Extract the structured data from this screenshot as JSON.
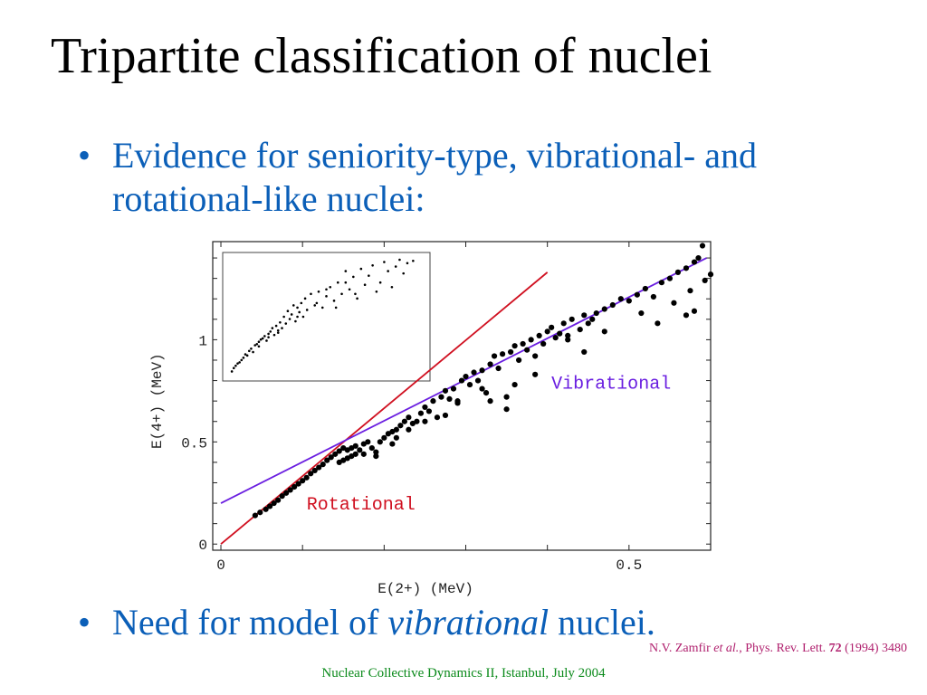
{
  "slide": {
    "title": "Tripartite classification of nuclei",
    "bullet_symbol": "•",
    "bullet1": "Evidence for seniority-type, vibrational- and rotational-like nuclei:",
    "bullet2": {
      "prefix": "Need for model of ",
      "emph": "vibrational",
      "suffix": " nuclei."
    },
    "reference": {
      "author": "N.V. Zamfir ",
      "etal": "et al.",
      "journal": ", Phys. Rev. Lett. ",
      "volume": "72",
      "rest": " (1994) 3480"
    },
    "footer": "Nuclear Collective Dynamics II, Istanbul, July 2004",
    "colors": {
      "title": "#000000",
      "bullet": "#0b5fb8",
      "reference": "#b0206e",
      "footer": "#0a8a1a",
      "rotational": "#d01020",
      "vibrational": "#6a1ee0"
    }
  },
  "chart_data": {
    "type": "scatter",
    "xlabel": "E(2+) (MeV)",
    "ylabel": "E(4+) (MeV)",
    "xlim": [
      -0.01,
      0.6
    ],
    "ylim": [
      -0.03,
      1.48
    ],
    "x_ticks": [
      {
        "value": 0,
        "label": "0"
      },
      {
        "value": 0.5,
        "label": "0.5"
      }
    ],
    "y_ticks": [
      {
        "value": 0,
        "label": "0"
      },
      {
        "value": 0.5,
        "label": "0.5"
      },
      {
        "value": 1,
        "label": "1"
      }
    ],
    "grid": false,
    "lines": [
      {
        "label": "Rotational",
        "x": [
          0,
          0.4
        ],
        "y": [
          0,
          1.33
        ]
      },
      {
        "label": "Vibrational",
        "x": [
          0,
          0.595
        ],
        "y": [
          0.2,
          1.4
        ]
      }
    ],
    "series": [
      {
        "values": [
          [
            0.042,
            0.14
          ],
          [
            0.048,
            0.155
          ],
          [
            0.055,
            0.17
          ],
          [
            0.06,
            0.185
          ],
          [
            0.065,
            0.2
          ],
          [
            0.07,
            0.215
          ],
          [
            0.075,
            0.235
          ],
          [
            0.08,
            0.25
          ],
          [
            0.085,
            0.265
          ],
          [
            0.09,
            0.28
          ],
          [
            0.095,
            0.295
          ],
          [
            0.1,
            0.31
          ],
          [
            0.105,
            0.325
          ],
          [
            0.11,
            0.345
          ],
          [
            0.115,
            0.36
          ],
          [
            0.12,
            0.375
          ],
          [
            0.125,
            0.39
          ],
          [
            0.13,
            0.41
          ],
          [
            0.135,
            0.425
          ],
          [
            0.14,
            0.44
          ],
          [
            0.145,
            0.455
          ],
          [
            0.15,
            0.47
          ],
          [
            0.155,
            0.46
          ],
          [
            0.16,
            0.47
          ],
          [
            0.165,
            0.48
          ],
          [
            0.17,
            0.46
          ],
          [
            0.175,
            0.49
          ],
          [
            0.18,
            0.5
          ],
          [
            0.185,
            0.47
          ],
          [
            0.19,
            0.45
          ],
          [
            0.195,
            0.5
          ],
          [
            0.2,
            0.52
          ],
          [
            0.205,
            0.54
          ],
          [
            0.21,
            0.55
          ],
          [
            0.215,
            0.56
          ],
          [
            0.22,
            0.58
          ],
          [
            0.225,
            0.6
          ],
          [
            0.23,
            0.62
          ],
          [
            0.235,
            0.59
          ],
          [
            0.24,
            0.6
          ],
          [
            0.245,
            0.64
          ],
          [
            0.25,
            0.67
          ],
          [
            0.255,
            0.65
          ],
          [
            0.26,
            0.7
          ],
          [
            0.265,
            0.62
          ],
          [
            0.27,
            0.72
          ],
          [
            0.275,
            0.75
          ],
          [
            0.28,
            0.71
          ],
          [
            0.285,
            0.76
          ],
          [
            0.29,
            0.69
          ],
          [
            0.295,
            0.8
          ],
          [
            0.3,
            0.82
          ],
          [
            0.305,
            0.78
          ],
          [
            0.31,
            0.84
          ],
          [
            0.315,
            0.8
          ],
          [
            0.32,
            0.85
          ],
          [
            0.325,
            0.74
          ],
          [
            0.33,
            0.88
          ],
          [
            0.335,
            0.92
          ],
          [
            0.34,
            0.86
          ],
          [
            0.345,
            0.93
          ],
          [
            0.35,
            0.66
          ],
          [
            0.355,
            0.94
          ],
          [
            0.36,
            0.97
          ],
          [
            0.365,
            0.9
          ],
          [
            0.37,
            0.98
          ],
          [
            0.375,
            0.95
          ],
          [
            0.38,
            1.0
          ],
          [
            0.385,
            0.92
          ],
          [
            0.39,
            1.02
          ],
          [
            0.395,
            0.98
          ],
          [
            0.4,
            1.04
          ],
          [
            0.405,
            1.06
          ],
          [
            0.41,
            1.01
          ],
          [
            0.415,
            1.03
          ],
          [
            0.42,
            1.08
          ],
          [
            0.425,
            1.02
          ],
          [
            0.43,
            1.1
          ],
          [
            0.44,
            1.05
          ],
          [
            0.445,
            1.12
          ],
          [
            0.45,
            1.08
          ],
          [
            0.455,
            1.1
          ],
          [
            0.46,
            1.13
          ],
          [
            0.47,
            1.15
          ],
          [
            0.48,
            1.17
          ],
          [
            0.49,
            1.2
          ],
          [
            0.5,
            1.19
          ],
          [
            0.51,
            1.22
          ],
          [
            0.52,
            1.25
          ],
          [
            0.53,
            1.21
          ],
          [
            0.54,
            1.28
          ],
          [
            0.55,
            1.3
          ],
          [
            0.56,
            1.33
          ],
          [
            0.57,
            1.35
          ],
          [
            0.58,
            1.38
          ],
          [
            0.585,
            1.4
          ],
          [
            0.59,
            1.46
          ],
          [
            0.593,
            1.29
          ],
          [
            0.57,
            1.12
          ],
          [
            0.58,
            1.14
          ],
          [
            0.6,
            1.32
          ],
          [
            0.515,
            1.13
          ],
          [
            0.535,
            1.08
          ],
          [
            0.555,
            1.18
          ],
          [
            0.575,
            1.24
          ],
          [
            0.425,
            1.0
          ],
          [
            0.445,
            0.94
          ],
          [
            0.47,
            1.04
          ],
          [
            0.385,
            0.83
          ],
          [
            0.36,
            0.78
          ],
          [
            0.35,
            0.72
          ],
          [
            0.33,
            0.7
          ],
          [
            0.32,
            0.76
          ],
          [
            0.29,
            0.7
          ],
          [
            0.275,
            0.63
          ],
          [
            0.25,
            0.6
          ],
          [
            0.23,
            0.56
          ],
          [
            0.215,
            0.52
          ],
          [
            0.21,
            0.49
          ],
          [
            0.19,
            0.43
          ],
          [
            0.175,
            0.44
          ],
          [
            0.165,
            0.44
          ],
          [
            0.16,
            0.43
          ],
          [
            0.155,
            0.42
          ],
          [
            0.15,
            0.41
          ],
          [
            0.145,
            0.4
          ]
        ]
      }
    ],
    "inset_series": [
      {
        "values": [
          [
            0.01,
            0.02
          ],
          [
            0.02,
            0.05
          ],
          [
            0.03,
            0.07
          ],
          [
            0.04,
            0.09
          ],
          [
            0.05,
            0.1
          ],
          [
            0.06,
            0.12
          ],
          [
            0.07,
            0.14
          ],
          [
            0.08,
            0.17
          ],
          [
            0.09,
            0.16
          ],
          [
            0.1,
            0.2
          ],
          [
            0.11,
            0.22
          ],
          [
            0.12,
            0.19
          ],
          [
            0.13,
            0.25
          ],
          [
            0.14,
            0.26
          ],
          [
            0.15,
            0.28
          ],
          [
            0.16,
            0.3
          ],
          [
            0.17,
            0.31
          ],
          [
            0.18,
            0.33
          ],
          [
            0.19,
            0.29
          ],
          [
            0.2,
            0.35
          ],
          [
            0.21,
            0.37
          ],
          [
            0.22,
            0.4
          ],
          [
            0.23,
            0.34
          ],
          [
            0.24,
            0.42
          ],
          [
            0.25,
            0.38
          ],
          [
            0.26,
            0.45
          ],
          [
            0.27,
            0.4
          ],
          [
            0.28,
            0.5
          ],
          [
            0.29,
            0.44
          ],
          [
            0.3,
            0.55
          ],
          [
            0.31,
            0.48
          ],
          [
            0.32,
            0.52
          ],
          [
            0.33,
            0.6
          ],
          [
            0.34,
            0.46
          ],
          [
            0.35,
            0.58
          ],
          [
            0.36,
            0.54
          ],
          [
            0.37,
            0.62
          ],
          [
            0.38,
            0.5
          ],
          [
            0.39,
            0.66
          ],
          [
            0.4,
            0.56
          ],
          [
            0.42,
            0.7
          ],
          [
            0.44,
            0.6
          ],
          [
            0.46,
            0.72
          ],
          [
            0.48,
            0.58
          ],
          [
            0.5,
            0.68
          ],
          [
            0.52,
            0.76
          ],
          [
            0.54,
            0.64
          ],
          [
            0.56,
            0.8
          ],
          [
            0.58,
            0.7
          ],
          [
            0.6,
            0.9
          ],
          [
            0.62,
            0.74
          ],
          [
            0.64,
            0.85
          ],
          [
            0.66,
            0.66
          ],
          [
            0.68,
            0.92
          ],
          [
            0.7,
            0.78
          ],
          [
            0.72,
            0.86
          ],
          [
            0.74,
            0.95
          ],
          [
            0.76,
            0.72
          ],
          [
            0.78,
            0.8
          ],
          [
            0.8,
            0.98
          ],
          [
            0.82,
            0.9
          ],
          [
            0.84,
            0.76
          ],
          [
            0.86,
            0.94
          ],
          [
            0.88,
            1.0
          ],
          [
            0.9,
            0.88
          ],
          [
            0.92,
            0.97
          ],
          [
            0.95,
            0.99
          ],
          [
            0.6,
            0.8
          ],
          [
            0.5,
            0.74
          ],
          [
            0.35,
            0.5
          ],
          [
            0.25,
            0.36
          ],
          [
            0.2,
            0.32
          ],
          [
            0.15,
            0.24
          ],
          [
            0.45,
            0.62
          ],
          [
            0.55,
            0.58
          ],
          [
            0.65,
            0.7
          ]
        ]
      }
    ]
  }
}
